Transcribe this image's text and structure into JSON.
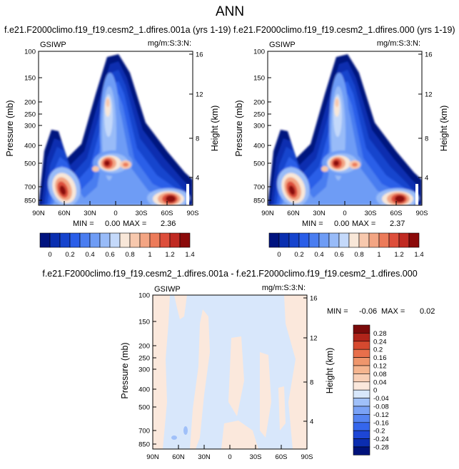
{
  "page": {
    "title": "ANN"
  },
  "colors": {
    "contour_levels": [
      "#00137f",
      "#0a2fb0",
      "#1644cd",
      "#2a5ee8",
      "#4a7df0",
      "#6e9cf5",
      "#98bbf8",
      "#c4d9fa",
      "#f8e7d8",
      "#f7c8ad",
      "#f3a583",
      "#ec7b5a",
      "#dd4e3b",
      "#c02a22",
      "#8b0a0a"
    ],
    "diff_levels": [
      "#00127a",
      "#0b2db0",
      "#1d46d6",
      "#3566ec",
      "#5584f2",
      "#7aa2f6",
      "#a0c0f9",
      "#d8e7fb",
      "#fbe8dc",
      "#f8cfb6",
      "#f5b58f",
      "#ef966c",
      "#e86f4b",
      "#d6492f",
      "#b0241a",
      "#7a0a0a"
    ]
  },
  "chart_data": [
    {
      "type": "contour",
      "title": "f.e21.F2000climo.f19_f19.cesm2_1.dfires.001a (yrs 1-19)",
      "left_label": "GSIWP",
      "right_label": "mg/m:S:3:N:",
      "ylabel": "Pressure (mb)",
      "right_ylabel": "Height (km)",
      "x_ticks": [
        "90N",
        "60N",
        "30N",
        "0",
        "30S",
        "60S",
        "90S"
      ],
      "y_ticks": [
        "100",
        "150",
        "200",
        "250",
        "300",
        "400",
        "500",
        "700",
        "850"
      ],
      "height_ticks": [
        "16",
        "12",
        "8",
        "4"
      ],
      "stats": {
        "min_label": "MIN =",
        "min": "0.00",
        "max_label": "MAX =",
        "max": "2.36"
      },
      "colorbar_labels": [
        "0",
        "0.2",
        "0.4",
        "0.6",
        "0.8",
        "1",
        "1.2",
        "1.4"
      ]
    },
    {
      "type": "contour",
      "title": "f.e21.F2000climo.f19_f19.cesm2_1.dfires.000 (yrs 1-19)",
      "left_label": "GSIWP",
      "right_label": "mg/m:S:3:N:",
      "ylabel": "Pressure (mb)",
      "right_ylabel": "Height (km)",
      "x_ticks": [
        "90N",
        "60N",
        "30N",
        "0",
        "30S",
        "60S",
        "90S"
      ],
      "y_ticks": [
        "100",
        "150",
        "200",
        "250",
        "300",
        "400",
        "500",
        "700",
        "850"
      ],
      "height_ticks": [
        "16",
        "12",
        "8",
        "4"
      ],
      "stats": {
        "min_label": "MIN =",
        "min": "0.00",
        "max_label": "MAX =",
        "max": "2.37"
      },
      "colorbar_labels": [
        "0",
        "0.2",
        "0.4",
        "0.6",
        "0.8",
        "1",
        "1.2",
        "1.4"
      ]
    },
    {
      "type": "contour",
      "title": "f.e21.F2000climo.f19_f19.cesm2_1.dfires.001a - f.e21.F2000climo.f19_f19.cesm2_1.dfires.000",
      "left_label": "GSIWP",
      "right_label": "mg/m:S:3:N:",
      "ylabel": "Pressure (mb)",
      "right_ylabel": "Height (km)",
      "x_ticks": [
        "90N",
        "60N",
        "30N",
        "0",
        "30S",
        "60S",
        "90S"
      ],
      "y_ticks": [
        "100",
        "150",
        "200",
        "250",
        "300",
        "400",
        "500",
        "700",
        "850"
      ],
      "height_ticks": [
        "16",
        "12",
        "8",
        "4"
      ],
      "stats": {
        "min_label": "MIN =",
        "min": "-0.06",
        "max_label": "MAX =",
        "max": "0.02"
      },
      "colorbar_labels": [
        "0.28",
        "0.24",
        "0.2",
        "0.16",
        "0.12",
        "0.08",
        "0.04",
        "0",
        "-0.04",
        "-0.08",
        "-0.12",
        "-0.16",
        "-0.2",
        "-0.24",
        "-0.28"
      ]
    }
  ]
}
